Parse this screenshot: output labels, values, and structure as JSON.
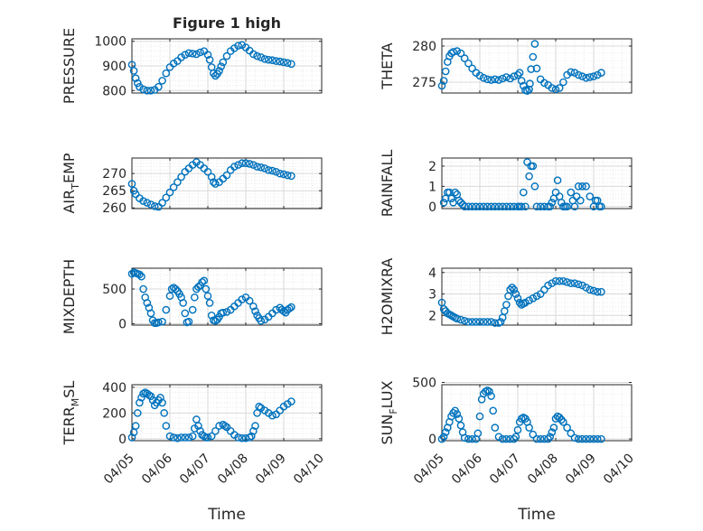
{
  "figure": {
    "title": "Figure 1 high",
    "xlabel": "Time"
  },
  "chart_data": [
    {
      "type": "scatter",
      "ylabel": "PRESSURE",
      "ylim": [
        790,
        1010
      ],
      "yticks": [
        "800",
        "900",
        "1000"
      ],
      "xticks": [
        "04/05",
        "04/06",
        "04/07",
        "04/08",
        "04/09",
        "04/10"
      ],
      "xlim": [
        0,
        5
      ],
      "grid": "on",
      "series": [
        {
          "x": [
            0.0,
            0.05,
            0.1,
            0.15,
            0.2,
            0.3,
            0.4,
            0.5,
            0.6,
            0.7,
            0.8,
            0.9,
            1.0,
            1.1,
            1.2,
            1.3,
            1.4,
            1.5,
            1.6,
            1.7,
            1.8,
            1.9,
            2.0,
            2.05,
            2.1,
            2.15,
            2.2,
            2.25,
            2.3,
            2.35,
            2.4,
            2.5,
            2.6,
            2.7,
            2.8,
            2.9,
            3.0,
            3.1,
            3.2,
            3.3,
            3.4,
            3.5,
            3.6,
            3.7,
            3.8,
            3.9,
            4.0,
            4.1,
            4.2
          ],
          "y": [
            905,
            880,
            850,
            830,
            815,
            805,
            800,
            800,
            803,
            815,
            840,
            870,
            895,
            910,
            920,
            935,
            945,
            952,
            950,
            948,
            955,
            960,
            945,
            925,
            895,
            870,
            860,
            868,
            880,
            898,
            915,
            940,
            960,
            972,
            982,
            985,
            975,
            962,
            948,
            940,
            935,
            928,
            925,
            923,
            920,
            918,
            915,
            912,
            908
          ]
        }
      ]
    },
    {
      "type": "scatter",
      "ylabel": "THETA",
      "ylim": [
        273.5,
        281
      ],
      "yticks": [
        "275",
        "280"
      ],
      "xticks": [
        "04/05",
        "04/06",
        "04/07",
        "04/08",
        "04/09",
        "04/10"
      ],
      "xlim": [
        0,
        5
      ],
      "grid": "on",
      "series": [
        {
          "x": [
            0.0,
            0.05,
            0.1,
            0.15,
            0.2,
            0.25,
            0.3,
            0.4,
            0.5,
            0.6,
            0.7,
            0.8,
            0.9,
            1.0,
            1.1,
            1.2,
            1.3,
            1.4,
            1.5,
            1.6,
            1.7,
            1.8,
            1.9,
            2.0,
            2.05,
            2.1,
            2.15,
            2.2,
            2.25,
            2.3,
            2.32,
            2.35,
            2.4,
            2.45,
            2.5,
            2.6,
            2.7,
            2.8,
            2.9,
            3.0,
            3.1,
            3.2,
            3.3,
            3.4,
            3.5,
            3.6,
            3.7,
            3.8,
            3.9,
            4.0,
            4.1,
            4.2
          ],
          "y": [
            274.5,
            275.2,
            276.5,
            277.8,
            278.6,
            279.0,
            279.2,
            279.3,
            279.0,
            278.3,
            277.6,
            276.9,
            276.3,
            275.9,
            275.6,
            275.4,
            275.3,
            275.4,
            275.3,
            275.5,
            275.7,
            275.5,
            275.8,
            276.0,
            276.3,
            275.2,
            274.5,
            273.9,
            273.8,
            274.0,
            274.8,
            276.8,
            278.5,
            280.3,
            276.9,
            275.4,
            274.9,
            274.6,
            274.2,
            274.0,
            274.2,
            275.0,
            276.0,
            276.4,
            276.3,
            276.0,
            275.8,
            275.6,
            275.7,
            275.8,
            276.0,
            276.3
          ]
        }
      ]
    },
    {
      "type": "scatter",
      "ylabel": "AIR_TEMP",
      "ylim": [
        259.8,
        274.5
      ],
      "yticks": [
        "260",
        "265",
        "270"
      ],
      "xticks": [
        "04/05",
        "04/06",
        "04/07",
        "04/08",
        "04/09",
        "04/10"
      ],
      "xlim": [
        0,
        5
      ],
      "grid": "on",
      "series": [
        {
          "x": [
            0.0,
            0.05,
            0.1,
            0.2,
            0.3,
            0.4,
            0.5,
            0.6,
            0.7,
            0.8,
            0.9,
            1.0,
            1.1,
            1.2,
            1.3,
            1.4,
            1.5,
            1.6,
            1.7,
            1.8,
            1.9,
            2.0,
            2.1,
            2.15,
            2.2,
            2.3,
            2.4,
            2.5,
            2.6,
            2.7,
            2.8,
            2.9,
            3.0,
            3.1,
            3.2,
            3.3,
            3.4,
            3.5,
            3.6,
            3.7,
            3.8,
            3.9,
            4.0,
            4.1,
            4.2
          ],
          "y": [
            267,
            265,
            264,
            262.8,
            262,
            261.5,
            261,
            260.5,
            260.3,
            261.5,
            263,
            264.5,
            266,
            267.5,
            269,
            270.5,
            271.5,
            272.5,
            273.3,
            272.5,
            271.5,
            270.5,
            269,
            267.5,
            267,
            267.5,
            268.5,
            269.5,
            271,
            272,
            272.5,
            273,
            273,
            272.8,
            272.5,
            272,
            271.8,
            271.5,
            271,
            270.8,
            270.5,
            270,
            269.8,
            269.5,
            269.3
          ]
        }
      ]
    },
    {
      "type": "scatter",
      "ylabel": "RAINFALL",
      "ylim": [
        -0.1,
        2.4
      ],
      "yticks": [
        "0",
        "1",
        "2"
      ],
      "xticks": [
        "04/05",
        "04/06",
        "04/07",
        "04/08",
        "04/09",
        "04/10"
      ],
      "xlim": [
        0,
        5
      ],
      "grid": "on",
      "series": [
        {
          "x": [
            0.05,
            0.1,
            0.15,
            0.2,
            0.25,
            0.3,
            0.35,
            0.4,
            0.45,
            0.5,
            0.55,
            0.6,
            0.7,
            0.8,
            0.9,
            1.0,
            1.1,
            1.2,
            1.3,
            1.4,
            1.5,
            1.6,
            1.7,
            1.8,
            1.9,
            2.0,
            2.05,
            2.1,
            2.15,
            2.2,
            2.25,
            2.3,
            2.35,
            2.4,
            2.45,
            2.5,
            2.6,
            2.7,
            2.8,
            2.85,
            2.9,
            2.95,
            3.0,
            3.05,
            3.1,
            3.15,
            3.2,
            3.25,
            3.3,
            3.4,
            3.45,
            3.5,
            3.55,
            3.6,
            3.65,
            3.7,
            3.8,
            3.9,
            4.0,
            4.05,
            4.1,
            4.15,
            4.2
          ],
          "y": [
            0.2,
            0.4,
            0.7,
            0.7,
            0.4,
            0.2,
            0.7,
            0.6,
            0.3,
            0.2,
            0.1,
            0,
            0,
            0,
            0,
            0,
            0,
            0,
            0,
            0,
            0,
            0,
            0,
            0,
            0,
            0,
            0,
            0,
            0.7,
            0,
            2.2,
            1.5,
            2.0,
            2.0,
            1.0,
            0,
            0,
            0,
            0,
            0,
            0.2,
            0.4,
            0.7,
            1.3,
            0.5,
            0.2,
            0,
            0,
            0,
            0.7,
            0.3,
            0,
            0.5,
            1.0,
            0.3,
            1.0,
            1.0,
            0.5,
            0,
            0.3,
            0.3,
            0,
            0
          ]
        }
      ]
    },
    {
      "type": "scatter",
      "ylabel": "MIXDEPTH",
      "ylim": [
        -20,
        800
      ],
      "yticks": [
        "0",
        "500"
      ],
      "xticks": [
        "04/05",
        "04/06",
        "04/07",
        "04/08",
        "04/09",
        "04/10"
      ],
      "xlim": [
        0,
        5
      ],
      "grid": "on",
      "series": [
        {
          "x": [
            0.0,
            0.05,
            0.1,
            0.15,
            0.2,
            0.25,
            0.3,
            0.35,
            0.4,
            0.45,
            0.5,
            0.55,
            0.6,
            0.65,
            0.7,
            0.8,
            0.9,
            1.0,
            1.05,
            1.1,
            1.15,
            1.2,
            1.25,
            1.3,
            1.35,
            1.4,
            1.45,
            1.5,
            1.6,
            1.65,
            1.7,
            1.75,
            1.8,
            1.85,
            1.9,
            1.95,
            2.0,
            2.05,
            2.1,
            2.15,
            2.2,
            2.25,
            2.3,
            2.35,
            2.4,
            2.5,
            2.6,
            2.7,
            2.8,
            2.9,
            3.0,
            3.1,
            3.2,
            3.25,
            3.3,
            3.35,
            3.4,
            3.5,
            3.6,
            3.7,
            3.8,
            3.9,
            3.95,
            4.0,
            4.05,
            4.1,
            4.15,
            4.2
          ],
          "y": [
            720,
            740,
            730,
            720,
            710,
            680,
            500,
            380,
            300,
            230,
            150,
            50,
            10,
            10,
            20,
            30,
            200,
            400,
            500,
            520,
            500,
            470,
            430,
            380,
            300,
            150,
            20,
            30,
            200,
            380,
            500,
            530,
            550,
            600,
            620,
            500,
            400,
            300,
            120,
            50,
            40,
            60,
            100,
            150,
            160,
            170,
            200,
            250,
            300,
            350,
            380,
            330,
            250,
            180,
            120,
            80,
            40,
            60,
            100,
            150,
            200,
            230,
            200,
            180,
            160,
            200,
            220,
            240
          ]
        }
      ]
    },
    {
      "type": "scatter",
      "ylabel": "H2OMIXRA",
      "ylim": [
        1.55,
        4.2
      ],
      "yticks": [
        "2",
        "3",
        "4"
      ],
      "xticks": [
        "04/05",
        "04/06",
        "04/07",
        "04/08",
        "04/09",
        "04/10"
      ],
      "xlim": [
        0,
        5
      ],
      "grid": "on",
      "series": [
        {
          "x": [
            0.0,
            0.05,
            0.1,
            0.15,
            0.2,
            0.25,
            0.3,
            0.35,
            0.4,
            0.5,
            0.6,
            0.7,
            0.8,
            0.9,
            1.0,
            1.1,
            1.2,
            1.3,
            1.4,
            1.5,
            1.55,
            1.6,
            1.65,
            1.7,
            1.75,
            1.8,
            1.85,
            1.9,
            1.95,
            2.0,
            2.05,
            2.1,
            2.15,
            2.2,
            2.3,
            2.4,
            2.5,
            2.6,
            2.7,
            2.8,
            2.9,
            3.0,
            3.1,
            3.2,
            3.3,
            3.4,
            3.5,
            3.6,
            3.7,
            3.8,
            3.9,
            4.0,
            4.1,
            4.2
          ],
          "y": [
            2.6,
            2.3,
            2.2,
            2.1,
            2.05,
            2.0,
            1.95,
            1.9,
            1.85,
            1.8,
            1.75,
            1.7,
            1.7,
            1.7,
            1.7,
            1.7,
            1.7,
            1.7,
            1.65,
            1.65,
            1.7,
            1.9,
            2.2,
            2.5,
            2.9,
            3.2,
            3.3,
            3.2,
            3.0,
            2.8,
            2.6,
            2.5,
            2.55,
            2.6,
            2.7,
            2.8,
            2.9,
            3.0,
            3.2,
            3.4,
            3.5,
            3.6,
            3.6,
            3.6,
            3.55,
            3.5,
            3.5,
            3.45,
            3.4,
            3.3,
            3.2,
            3.15,
            3.1,
            3.1
          ]
        }
      ]
    },
    {
      "type": "scatter",
      "ylabel": "TERR_MSL",
      "ylim": [
        -15,
        420
      ],
      "yticks": [
        "0",
        "200",
        "400"
      ],
      "xticks": [
        "04/05",
        "04/06",
        "04/07",
        "04/08",
        "04/09",
        "04/10"
      ],
      "xlim": [
        0,
        5
      ],
      "grid": "on",
      "series": [
        {
          "x": [
            0.0,
            0.05,
            0.1,
            0.15,
            0.2,
            0.25,
            0.3,
            0.35,
            0.4,
            0.45,
            0.5,
            0.55,
            0.6,
            0.65,
            0.7,
            0.75,
            0.8,
            0.85,
            0.9,
            1.0,
            1.1,
            1.2,
            1.3,
            1.4,
            1.5,
            1.6,
            1.65,
            1.7,
            1.75,
            1.8,
            1.85,
            1.9,
            1.95,
            2.0,
            2.1,
            2.2,
            2.3,
            2.4,
            2.45,
            2.5,
            2.6,
            2.7,
            2.8,
            2.9,
            3.0,
            3.1,
            3.15,
            3.2,
            3.25,
            3.3,
            3.35,
            3.4,
            3.5,
            3.6,
            3.7,
            3.8,
            3.9,
            4.0,
            4.1,
            4.2
          ],
          "y": [
            10,
            50,
            100,
            200,
            280,
            320,
            350,
            360,
            350,
            340,
            330,
            300,
            260,
            280,
            300,
            320,
            280,
            200,
            100,
            20,
            10,
            5,
            10,
            10,
            10,
            20,
            80,
            150,
            100,
            60,
            30,
            20,
            10,
            10,
            20,
            60,
            100,
            110,
            100,
            90,
            60,
            30,
            10,
            5,
            5,
            10,
            20,
            60,
            100,
            200,
            250,
            240,
            220,
            200,
            180,
            190,
            220,
            250,
            270,
            290
          ]
        }
      ]
    },
    {
      "type": "scatter",
      "ylabel": "SUN_FLUX",
      "ylim": [
        -15,
        480
      ],
      "yticks": [
        "0",
        "500"
      ],
      "xticks": [
        "04/05",
        "04/06",
        "04/07",
        "04/08",
        "04/09",
        "04/10"
      ],
      "xlim": [
        0,
        5
      ],
      "grid": "on",
      "series": [
        {
          "x": [
            0.0,
            0.05,
            0.1,
            0.15,
            0.2,
            0.25,
            0.3,
            0.35,
            0.4,
            0.45,
            0.5,
            0.55,
            0.6,
            0.7,
            0.8,
            0.9,
            0.95,
            1.0,
            1.05,
            1.1,
            1.15,
            1.2,
            1.25,
            1.3,
            1.35,
            1.4,
            1.5,
            1.6,
            1.7,
            1.8,
            1.9,
            1.95,
            2.0,
            2.05,
            2.1,
            2.15,
            2.2,
            2.25,
            2.3,
            2.4,
            2.5,
            2.6,
            2.7,
            2.8,
            2.85,
            2.9,
            2.95,
            3.0,
            3.05,
            3.1,
            3.15,
            3.2,
            3.3,
            3.4,
            3.5,
            3.6,
            3.7,
            3.8,
            3.9,
            4.0,
            4.1,
            4.2
          ],
          "y": [
            0,
            20,
            60,
            100,
            150,
            200,
            230,
            250,
            220,
            180,
            120,
            60,
            10,
            0,
            0,
            0,
            50,
            200,
            350,
            400,
            420,
            430,
            420,
            380,
            250,
            100,
            20,
            0,
            0,
            0,
            0,
            20,
            80,
            150,
            180,
            190,
            180,
            150,
            100,
            40,
            0,
            0,
            0,
            0,
            20,
            60,
            100,
            180,
            200,
            190,
            170,
            150,
            100,
            50,
            10,
            0,
            0,
            0,
            0,
            0,
            0,
            0
          ]
        }
      ]
    }
  ],
  "colors": {
    "marker": "#0072BD",
    "grid": "#d9d9d9",
    "axis": "#262626"
  }
}
